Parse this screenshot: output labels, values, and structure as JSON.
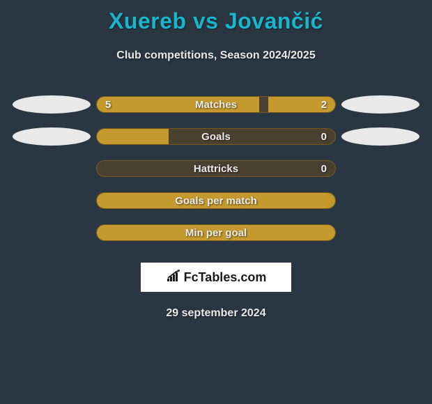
{
  "title": "Xuereb vs Jovančić",
  "subtitle": "Club competitions, Season 2024/2025",
  "date": "29 september 2024",
  "logo_text": "FcTables.com",
  "colors": {
    "background": "#2a3742",
    "accent": "#19b5cc",
    "bar_fill": "#c49a2e",
    "bar_bg": "#4a4030",
    "bar_border": "#7a5a1a",
    "text_light": "#e8e8e8",
    "oval": "#e9e9e9",
    "logo_bg": "#ffffff"
  },
  "rows": [
    {
      "label": "Matches",
      "left_value": "5",
      "right_value": "2",
      "left_fill_pct": 68,
      "right_fill_pct": 28,
      "show_left_oval": true,
      "show_right_oval": true
    },
    {
      "label": "Goals",
      "left_value": "",
      "right_value": "0",
      "left_fill_pct": 30,
      "right_fill_pct": 0,
      "show_left_oval": true,
      "show_right_oval": true
    },
    {
      "label": "Hattricks",
      "left_value": "",
      "right_value": "0",
      "left_fill_pct": 0,
      "right_fill_pct": 0,
      "show_left_oval": false,
      "show_right_oval": false
    },
    {
      "label": "Goals per match",
      "left_value": "",
      "right_value": "",
      "left_fill_pct": 100,
      "right_fill_pct": 0,
      "show_left_oval": false,
      "show_right_oval": false
    },
    {
      "label": "Min per goal",
      "left_value": "",
      "right_value": "",
      "left_fill_pct": 100,
      "right_fill_pct": 0,
      "show_left_oval": false,
      "show_right_oval": false
    }
  ]
}
